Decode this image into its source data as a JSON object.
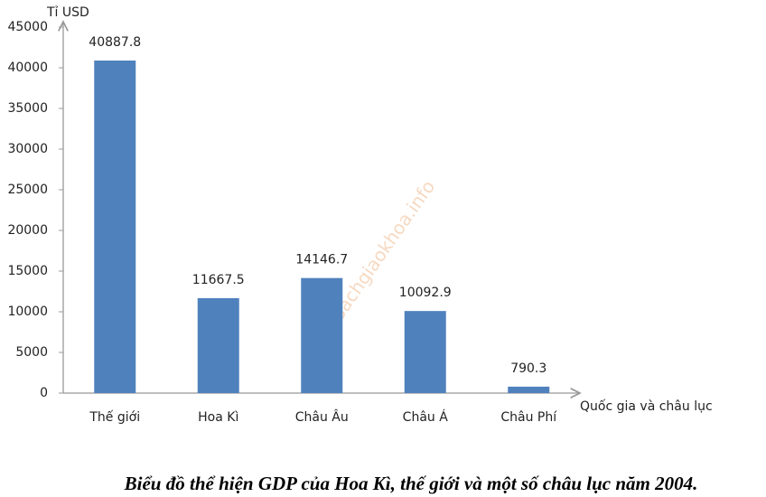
{
  "chart_data": {
    "type": "bar",
    "title": "Biểu đồ thể hiện GDP của Hoa Kì, thế giới và một số châu lục năm 2004.",
    "y_label": "Tỉ USD",
    "x_label": "Quốc gia và châu lục",
    "watermark": "Sachgiaokhoa.info",
    "categories": [
      "Thế giới",
      "Hoa Kì",
      "Châu Âu",
      "Châu Á",
      "Châu Phí"
    ],
    "values": [
      40887.8,
      11667.5,
      14146.7,
      10092.9,
      790.3
    ],
    "color": "#4f81bd",
    "ylim": [
      0,
      45000
    ],
    "yticks": [
      0,
      5000,
      10000,
      15000,
      20000,
      25000,
      30000,
      35000,
      40000,
      45000
    ],
    "grid": false
  }
}
